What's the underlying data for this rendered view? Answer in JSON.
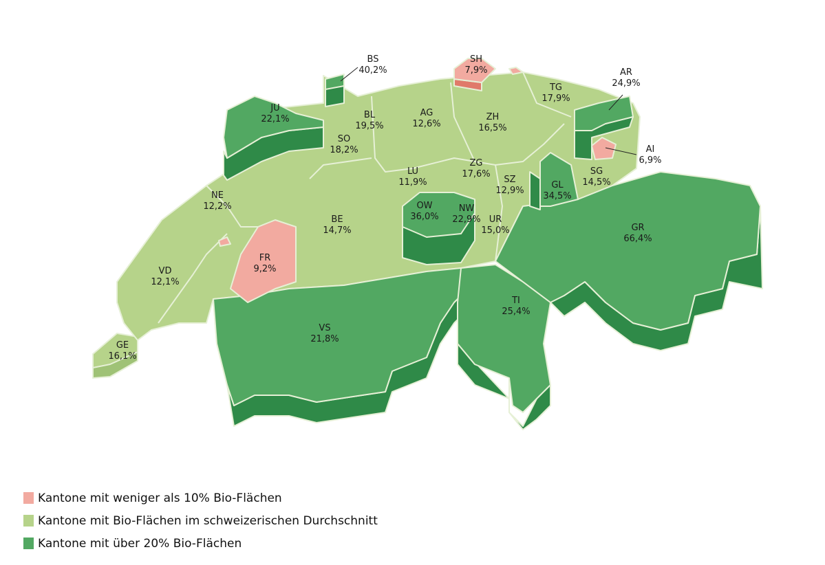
{
  "colors": {
    "low": "#f2aaa0",
    "average": "#b6d38a",
    "high": "#52a862",
    "high_side": "#2f8a48",
    "border": "#e6f0d6"
  },
  "cantons": [
    {
      "code": "BS",
      "value": "40,2%",
      "category": "high"
    },
    {
      "code": "SH",
      "value": "7,9%",
      "category": "low"
    },
    {
      "code": "AR",
      "value": "24,9%",
      "category": "high"
    },
    {
      "code": "TG",
      "value": "17,9%",
      "category": "average"
    },
    {
      "code": "JU",
      "value": "22,1%",
      "category": "high"
    },
    {
      "code": "BL",
      "value": "19,5%",
      "category": "average"
    },
    {
      "code": "AG",
      "value": "12,6%",
      "category": "average"
    },
    {
      "code": "ZH",
      "value": "16,5%",
      "category": "average"
    },
    {
      "code": "SO",
      "value": "18,2%",
      "category": "average"
    },
    {
      "code": "AI",
      "value": "6,9%",
      "category": "low"
    },
    {
      "code": "LU",
      "value": "11,9%",
      "category": "average"
    },
    {
      "code": "ZG",
      "value": "17,6%",
      "category": "average"
    },
    {
      "code": "SZ",
      "value": "12,9%",
      "category": "average"
    },
    {
      "code": "SG",
      "value": "14,5%",
      "category": "average"
    },
    {
      "code": "GL",
      "value": "34,5%",
      "category": "high"
    },
    {
      "code": "NE",
      "value": "12,2%",
      "category": "average"
    },
    {
      "code": "OW",
      "value": "36,0%",
      "category": "high"
    },
    {
      "code": "NW",
      "value": "22,9%",
      "category": "high"
    },
    {
      "code": "UR",
      "value": "15,0%",
      "category": "average"
    },
    {
      "code": "BE",
      "value": "14,7%",
      "category": "average"
    },
    {
      "code": "GR",
      "value": "66,4%",
      "category": "high"
    },
    {
      "code": "FR",
      "value": "9,2%",
      "category": "low"
    },
    {
      "code": "VD",
      "value": "12,1%",
      "category": "average"
    },
    {
      "code": "TI",
      "value": "25,4%",
      "category": "high"
    },
    {
      "code": "VS",
      "value": "21,8%",
      "category": "high"
    },
    {
      "code": "GE",
      "value": "16,1%",
      "category": "average"
    }
  ],
  "legend": [
    {
      "label": "Kantone mit weniger als 10% Bio-Flächen",
      "color": "#f2aaa0"
    },
    {
      "label": "Kantone mit Bio-Flächen im schweizerischen Durchschnitt",
      "color": "#b6d38a"
    },
    {
      "label": "Kantone mit über 20% Bio-Flächen",
      "color": "#52a862"
    }
  ]
}
